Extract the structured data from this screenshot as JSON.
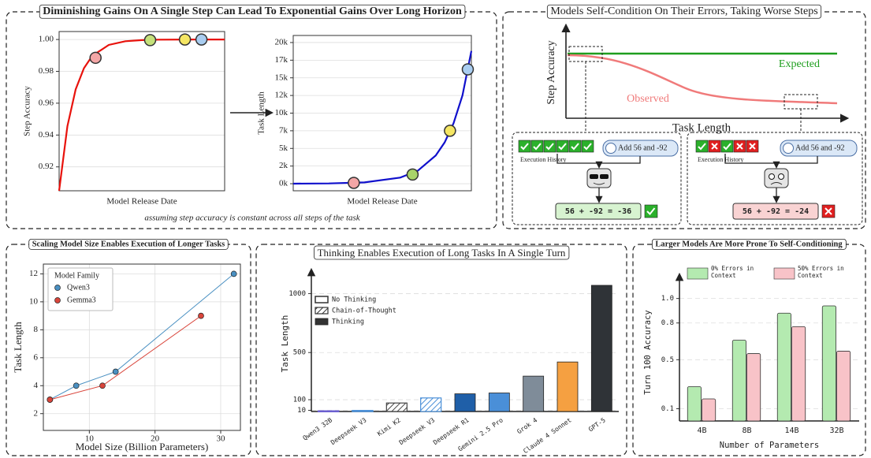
{
  "top_left": {
    "title": "Diminishing Gains On A Single Step Can Lead To Exponential Gains Over Long Horizon",
    "caption": "assuming step accuracy is constant across all steps of the task"
  },
  "diagram": {
    "title": "Models Self-Condition On Their Errors, Taking Worse Steps",
    "ylabel": "Step Accuracy",
    "xlabel": "Task Length",
    "expected": "Expected",
    "observed": "Observed",
    "left": {
      "history_label": "Execution History",
      "prompt": "Add 56 and -92",
      "answer": "56 + -92 = -36"
    },
    "right": {
      "history_label": "Execution History",
      "prompt": "Add 56 and -92",
      "answer": "56 + -92 = -24"
    }
  },
  "chart_data": [
    {
      "type": "curve",
      "ylabel": "Step Accuracy",
      "xlabel": "Model Release Date",
      "xlim": [
        0,
        10
      ],
      "ylim": [
        0.905,
        1.005
      ],
      "yticks": [
        0.92,
        0.94,
        0.96,
        0.98,
        {
          "value": 1,
          "label": "1.00"
        }
      ],
      "grid": true,
      "line_color": "#e8120c",
      "x": [
        0,
        0.5,
        1,
        1.5,
        2,
        3,
        4,
        5,
        6,
        8,
        10
      ],
      "values": [
        0.905,
        0.9455,
        0.9687,
        0.982,
        0.9897,
        0.9966,
        0.9989,
        0.9996,
        0.9999,
        1.0,
        1.0
      ],
      "markers": {
        "x": [
          2.2,
          5.5,
          7.6,
          8.6
        ],
        "values": [
          0.9885,
          0.9996,
          1.0,
          1.0
        ],
        "colors": [
          "#f4a6a6",
          "#c5e17a",
          "#f5e663",
          "#a9cdf0"
        ]
      }
    },
    {
      "type": "curve",
      "ylabel": "Task Length",
      "xlabel": "Model Release Date",
      "xlim": [
        0,
        10
      ],
      "ylim": [
        -1000,
        21000
      ],
      "yticks": [
        {
          "value": 0,
          "label": "0k"
        },
        {
          "value": 2500,
          "label": "2k"
        },
        {
          "value": 5000,
          "label": "5k"
        },
        {
          "value": 7500,
          "label": "7k"
        },
        {
          "value": 10000,
          "label": "10k"
        },
        {
          "value": 12500,
          "label": "12k"
        },
        {
          "value": 15000,
          "label": "15k"
        },
        {
          "value": 17500,
          "label": "17k"
        },
        {
          "value": 20000,
          "label": "20k"
        }
      ],
      "grid": true,
      "line_color": "#1010cc",
      "x": [
        0,
        2,
        4,
        6,
        7,
        8,
        8.5,
        9,
        9.5,
        10
      ],
      "values": [
        8.5,
        40,
        186,
        860,
        1850,
        4000,
        5850,
        8560,
        12500,
        18800
      ],
      "markers": {
        "x": [
          3.4,
          6.7,
          8.8,
          9.8
        ],
        "values": [
          120,
          1300,
          7500,
          16200
        ],
        "colors": [
          "#f4a6a6",
          "#a9d46a",
          "#f5e663",
          "#a9cdf0"
        ]
      }
    },
    {
      "type": "line",
      "title": "Scaling Model Size Enables Execution of Longer Tasks",
      "xlabel": "Model Size (Billion Parameters)",
      "ylabel": "Task Length",
      "legend_title": "Model Family",
      "legend": "upper left",
      "xlim": [
        3,
        33
      ],
      "xticks": [
        10,
        20,
        30
      ],
      "ylim": [
        0.8,
        12.7
      ],
      "yticks": [
        2,
        4,
        6,
        8,
        10,
        12
      ],
      "grid": true,
      "series": [
        {
          "name": "Qwen3",
          "color": "#4a90c2",
          "x": [
            4,
            8,
            14,
            32
          ],
          "values": [
            3,
            4,
            5,
            12
          ]
        },
        {
          "name": "Gemma3",
          "color": "#d9453b",
          "x": [
            4,
            12,
            27
          ],
          "values": [
            3,
            4,
            9
          ]
        }
      ]
    },
    {
      "type": "bar",
      "title": "Thinking Enables Execution of Long Tasks In A Single Turn",
      "ylabel": "Task Length",
      "categories": [
        "Qwen3 32B",
        "Deepseek V3",
        "Kimi K2",
        "Deepseek V3",
        "Deepseek R1",
        "Gemini 2.5 Pro",
        "Grok 4",
        "Claude 4 Sonnet",
        "GPT-5"
      ],
      "bar_colors": [
        "#6b5fd0",
        "#4a8fd8",
        "#444444",
        "#4a8fd8",
        "#1f5fa8",
        "#4a8fd8",
        "#7f8c99",
        "#f5a041",
        "#2f3337"
      ],
      "ylim": [
        0,
        1150
      ],
      "yticks": [
        10,
        100,
        500,
        1000
      ],
      "grid": true,
      "series": [
        {
          "name": "No Thinking",
          "pattern": "outline",
          "values": [
            5,
            8,
            null,
            null,
            null,
            null,
            null,
            null,
            null
          ]
        },
        {
          "name": "Chain-of-Thought",
          "pattern": "hatch",
          "values": [
            null,
            null,
            72,
            115,
            null,
            null,
            null,
            null,
            null
          ]
        },
        {
          "name": "Thinking",
          "pattern": "solid",
          "values": [
            null,
            null,
            null,
            null,
            150,
            157,
            300,
            420,
            1070
          ]
        }
      ]
    },
    {
      "type": "grouped_bar",
      "title": "Larger Models Are More Prone To Self-Conditioning",
      "xlabel": "Number of Parameters",
      "ylabel": "Turn 100 Accuracy",
      "categories": [
        "4B",
        "8B",
        "14B",
        "32B"
      ],
      "ylim": [
        0,
        1.12
      ],
      "yticks": [
        0.1,
        0.5,
        0.8,
        {
          "value": 1,
          "label": "1.0"
        }
      ],
      "grid": true,
      "series": [
        {
          "name": "0% Errors in Context",
          "color": "#b4eab0",
          "values": [
            0.28,
            0.66,
            0.88,
            0.94
          ]
        },
        {
          "name": "50% Errors in Context",
          "color": "#f8c3c8",
          "values": [
            0.18,
            0.55,
            0.77,
            0.57
          ]
        }
      ]
    }
  ]
}
